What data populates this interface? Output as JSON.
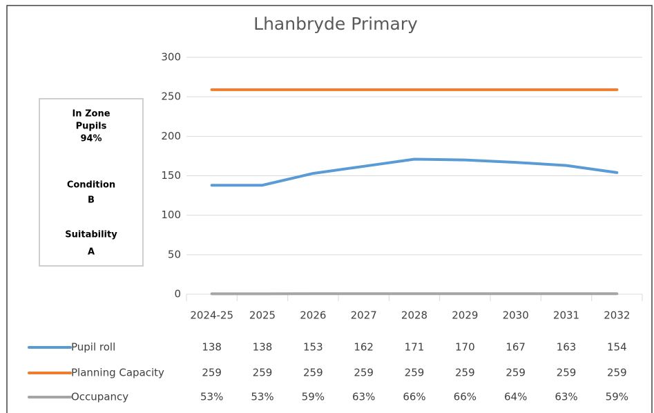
{
  "chart_data": {
    "type": "line",
    "title": "Lhanbryde Primary",
    "categories": [
      "2024-25",
      "2025",
      "2026",
      "2027",
      "2028",
      "2029",
      "2030",
      "2031",
      "2032"
    ],
    "series": [
      {
        "name": "Pupil roll",
        "color": "#5b9bd5",
        "values": [
          138,
          138,
          153,
          162,
          171,
          170,
          167,
          163,
          154
        ]
      },
      {
        "name": "Planning Capacity",
        "color": "#ed7d31",
        "values": [
          259,
          259,
          259,
          259,
          259,
          259,
          259,
          259,
          259
        ]
      },
      {
        "name": "Occupancy",
        "color": "#a5a5a5",
        "values": [
          0.53,
          0.53,
          0.59,
          0.63,
          0.66,
          0.66,
          0.64,
          0.63,
          0.59
        ],
        "value_labels": [
          "53%",
          "53%",
          "59%",
          "63%",
          "66%",
          "66%",
          "64%",
          "63%",
          "59%"
        ]
      }
    ],
    "ylim": [
      0,
      300
    ],
    "yticks": [
      0,
      50,
      100,
      150,
      200,
      250,
      300
    ],
    "grid": true,
    "data_table": true,
    "info_box": [
      "In Zone",
      "Pupils",
      "94%",
      "Condition",
      "B",
      "Suitability",
      "A"
    ]
  }
}
